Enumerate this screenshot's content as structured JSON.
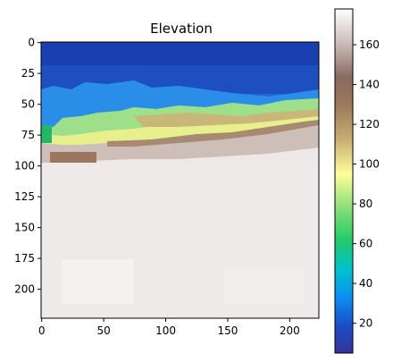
{
  "chart_data": {
    "type": "heatmap",
    "title": "Elevation",
    "colormap": "terrain",
    "x_ticks": [
      0,
      50,
      100,
      150,
      200
    ],
    "y_ticks": [
      0,
      25,
      50,
      75,
      100,
      125,
      150,
      175,
      200
    ],
    "x_range": [
      0,
      224
    ],
    "y_range": [
      0,
      224
    ],
    "y_axis": "inverted (0 at top)",
    "colorbar": {
      "range": [
        5,
        178
      ],
      "ticks": [
        20,
        40,
        60,
        80,
        100,
        120,
        140,
        160
      ],
      "placement": "right"
    },
    "grid": false,
    "description_of_values": {
      "rows_0_45": "deep water, values ~5-20",
      "rows_45_80": "shoreline transition, values ~20-120",
      "rows_80_100": "brown highland band, values ~120-160",
      "rows_100_224": "near-white high terrain, values ~160-178"
    }
  }
}
